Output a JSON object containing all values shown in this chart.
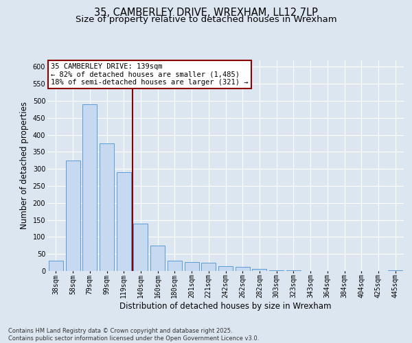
{
  "title_line1": "35, CAMBERLEY DRIVE, WREXHAM, LL12 7LP",
  "title_line2": "Size of property relative to detached houses in Wrexham",
  "xlabel": "Distribution of detached houses by size in Wrexham",
  "ylabel": "Number of detached properties",
  "categories": [
    "38sqm",
    "58sqm",
    "79sqm",
    "99sqm",
    "119sqm",
    "140sqm",
    "160sqm",
    "180sqm",
    "201sqm",
    "221sqm",
    "242sqm",
    "262sqm",
    "282sqm",
    "303sqm",
    "323sqm",
    "343sqm",
    "364sqm",
    "384sqm",
    "404sqm",
    "425sqm",
    "445sqm"
  ],
  "values": [
    30,
    325,
    490,
    375,
    290,
    140,
    75,
    30,
    27,
    25,
    15,
    12,
    7,
    3,
    2,
    1,
    1,
    1,
    0,
    0,
    2
  ],
  "bar_color": "#c6d9f0",
  "bar_edge_color": "#5b9bd5",
  "vline_color": "#8b0000",
  "annotation_box_text": "35 CAMBERLEY DRIVE: 139sqm\n← 82% of detached houses are smaller (1,485)\n18% of semi-detached houses are larger (321) →",
  "annotation_box_color": "#8b0000",
  "annotation_box_facecolor": "white",
  "ylim": [
    0,
    620
  ],
  "yticks": [
    0,
    50,
    100,
    150,
    200,
    250,
    300,
    350,
    400,
    450,
    500,
    550,
    600
  ],
  "background_color": "#dce6f1",
  "plot_bg_color": "#dce6f1",
  "grid_color": "white",
  "footer_text": "Contains HM Land Registry data © Crown copyright and database right 2025.\nContains public sector information licensed under the Open Government Licence v3.0.",
  "title_fontsize": 10.5,
  "subtitle_fontsize": 9.5,
  "tick_fontsize": 7,
  "label_fontsize": 8.5,
  "annot_fontsize": 7.5
}
